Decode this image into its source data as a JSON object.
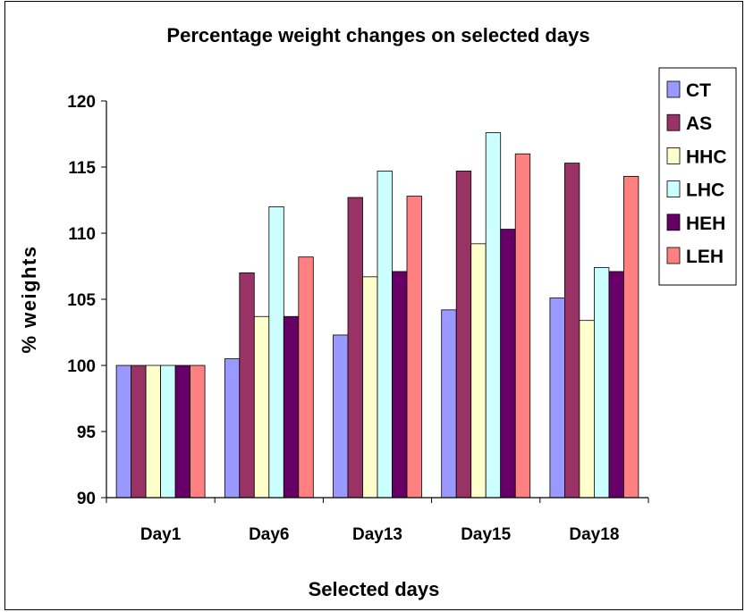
{
  "chart_data": {
    "type": "bar",
    "title": "Percentage weight changes on selected days",
    "xlabel": "Selected days",
    "ylabel": "% weights",
    "categories": [
      "Day1",
      "Day6",
      "Day13",
      "Day15",
      "Day18"
    ],
    "ylim": [
      90,
      120
    ],
    "yticks": [
      90,
      95,
      100,
      105,
      110,
      115,
      120
    ],
    "grid": false,
    "legend_position": "right",
    "series": [
      {
        "name": "CT",
        "color": "#9999FF",
        "values": [
          100,
          100.5,
          102.3,
          104.2,
          105.1
        ]
      },
      {
        "name": "AS",
        "color": "#993366",
        "values": [
          100,
          107.0,
          112.7,
          114.7,
          115.3
        ]
      },
      {
        "name": "HHC",
        "color": "#FFFFCC",
        "values": [
          100,
          103.7,
          106.7,
          109.2,
          103.4
        ]
      },
      {
        "name": "LHC",
        "color": "#CCFFFF",
        "values": [
          100,
          112.0,
          114.7,
          117.6,
          107.4
        ]
      },
      {
        "name": "HEH",
        "color": "#660066",
        "values": [
          100,
          103.7,
          107.1,
          110.3,
          107.1
        ]
      },
      {
        "name": "LEH",
        "color": "#FF8080",
        "values": [
          100,
          108.2,
          112.8,
          116.0,
          114.3
        ]
      }
    ]
  }
}
